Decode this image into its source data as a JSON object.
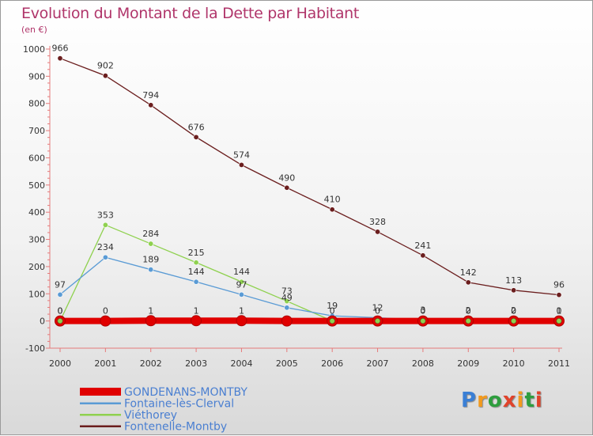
{
  "header": {
    "title": "Evolution du Montant de la Dette par Habitant",
    "subtitle": "(en €)"
  },
  "logo": {
    "text": "Proxiti",
    "letter_colors": [
      "#3a7fd5",
      "#f29a1e",
      "#2e9e3e",
      "#e0432b",
      "#f29a1e",
      "#2e9e3e",
      "#e0432b"
    ]
  },
  "chart_data": {
    "type": "line",
    "title": "Evolution du Montant de la Dette par Habitant",
    "subtitle": "(en €)",
    "x": [
      "2000",
      "2001",
      "2002",
      "2003",
      "2004",
      "2005",
      "2006",
      "2007",
      "2008",
      "2009",
      "2010",
      "2011"
    ],
    "ylim": [
      -100,
      1000
    ],
    "yticks": [
      -100,
      0,
      100,
      200,
      300,
      400,
      500,
      600,
      700,
      800,
      900,
      1000
    ],
    "grid": false,
    "legend_position": "bottom-left",
    "series": [
      {
        "name": "Fontenelle-Montby",
        "color": "#6b1e1e",
        "values": [
          966,
          902,
          794,
          676,
          574,
          490,
          410,
          328,
          241,
          142,
          113,
          96
        ],
        "labels": [
          "966",
          "902",
          "794",
          "676",
          "574",
          "490",
          "410",
          "328",
          "241",
          "142",
          "113",
          "96"
        ]
      },
      {
        "name": "Viéthorey",
        "color": "#8fd14f",
        "values": [
          0,
          353,
          284,
          215,
          144,
          73,
          0,
          0,
          0,
          0,
          0,
          0
        ],
        "labels": [
          "0",
          "353",
          "284",
          "215",
          "144",
          "73",
          "0",
          "0",
          "0",
          "0",
          "0",
          "0"
        ]
      },
      {
        "name": "Fontaine-lès-Clerval",
        "color": "#5a9bd5",
        "values": [
          97,
          234,
          189,
          144,
          97,
          49,
          19,
          12,
          3,
          2,
          2,
          1
        ],
        "labels": [
          "97",
          "234",
          "189",
          "144",
          "97",
          "49",
          "19",
          "12",
          "3",
          "2",
          "2",
          "1"
        ]
      },
      {
        "name": "GONDENANS-MONTBY",
        "color": "#e00000",
        "values": [
          0,
          0,
          1,
          1,
          1,
          0,
          0,
          0,
          0,
          0,
          0,
          0
        ],
        "labels": [
          "0",
          "0",
          "1",
          "1",
          "1",
          "",
          "",
          "",
          "",
          "",
          "",
          ""
        ]
      }
    ],
    "legend": [
      {
        "name": "GONDENANS-MONTBY",
        "color": "#e00000"
      },
      {
        "name": "Fontaine-lès-Clerval",
        "color": "#5a9bd5"
      },
      {
        "name": "Viéthorey",
        "color": "#8fd14f"
      },
      {
        "name": "Fontenelle-Montby",
        "color": "#6b1e1e"
      }
    ]
  }
}
